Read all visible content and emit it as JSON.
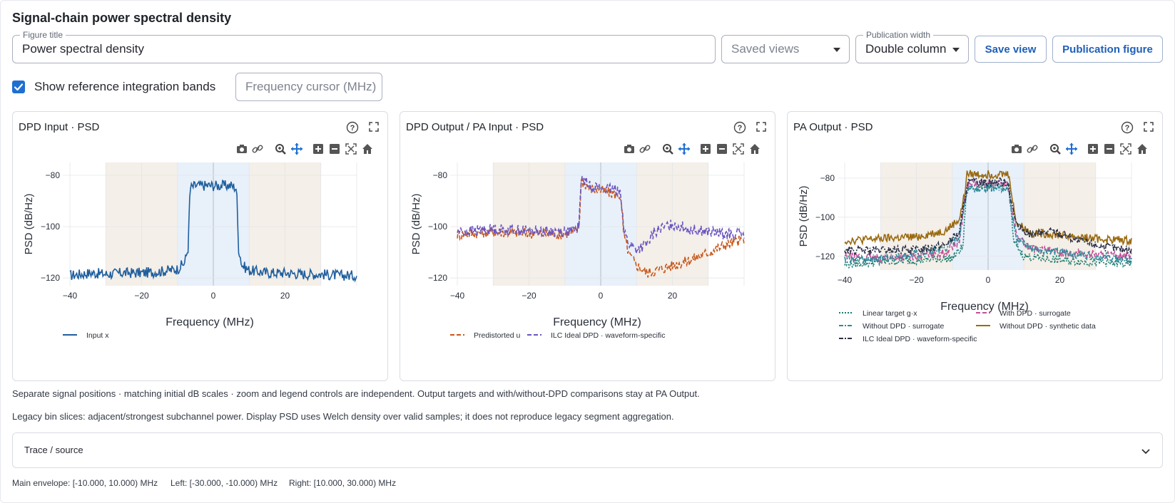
{
  "page": {
    "title": "Signal-chain power spectral density"
  },
  "controls": {
    "figure_title": {
      "label": "Figure title",
      "value": "Power spectral density"
    },
    "saved_views": {
      "placeholder": "Saved views"
    },
    "publication_width": {
      "label": "Publication width",
      "value": "Double column"
    },
    "save_view_label": "Save view",
    "publication_figure_label": "Publication figure",
    "show_bands": {
      "label": "Show reference integration bands",
      "checked": true
    },
    "frequency_cursor": {
      "placeholder": "Frequency cursor (MHz)"
    }
  },
  "panels": [
    {
      "title": "DPD Input · PSD",
      "legend": [
        "Input x"
      ]
    },
    {
      "title": "DPD Output / PA Input · PSD",
      "legend": [
        "Predistorted u",
        "ILC Ideal DPD · waveform-specific"
      ]
    },
    {
      "title": "PA Output · PSD",
      "legend": [
        "Linear target g·x",
        "With DPD · surrogate",
        "Without DPD · surrogate",
        "Without DPD · synthetic data",
        "ILC Ideal DPD · waveform-specific"
      ]
    }
  ],
  "chart_data": [
    {
      "type": "line",
      "title": "DPD Input · PSD",
      "xlabel": "Frequency (MHz)",
      "ylabel": "PSD (dB/Hz)",
      "xlim": [
        -42,
        40
      ],
      "ylim": [
        -123,
        -75
      ],
      "xticks": [
        -40,
        -20,
        0,
        20
      ],
      "yticks": [
        -80,
        -100,
        -120
      ],
      "bands": [
        {
          "name": "Left",
          "x": [
            -30,
            -10
          ]
        },
        {
          "name": "Main envelope",
          "x": [
            -10,
            10
          ]
        },
        {
          "name": "Right",
          "x": [
            10,
            30
          ]
        }
      ],
      "series": [
        {
          "name": "Input x",
          "color": "#1f5f9e",
          "dash": "solid",
          "points": [
            [
              -40,
              -119
            ],
            [
              -34,
              -118
            ],
            [
              -30,
              -118.5
            ],
            [
              -25,
              -118
            ],
            [
              -20,
              -118
            ],
            [
              -15,
              -117.5
            ],
            [
              -10,
              -116.5
            ],
            [
              -8,
              -114
            ],
            [
              -7,
              -108
            ],
            [
              -6.5,
              -85
            ],
            [
              -5,
              -84
            ],
            [
              0,
              -84
            ],
            [
              5,
              -84
            ],
            [
              6.5,
              -85
            ],
            [
              7,
              -108
            ],
            [
              8,
              -115
            ],
            [
              10,
              -117
            ],
            [
              15,
              -118
            ],
            [
              20,
              -118
            ],
            [
              25,
              -118.5
            ],
            [
              30,
              -118.5
            ],
            [
              35,
              -119
            ],
            [
              40,
              -119
            ]
          ]
        }
      ]
    },
    {
      "type": "line",
      "title": "DPD Output / PA Input · PSD",
      "xlabel": "Frequency (MHz)",
      "ylabel": "PSD (dB/Hz)",
      "xlim": [
        -42,
        40
      ],
      "ylim": [
        -123,
        -75
      ],
      "xticks": [
        -40,
        -20,
        0,
        20
      ],
      "yticks": [
        -80,
        -100,
        -120
      ],
      "bands": [
        {
          "name": "Left",
          "x": [
            -30,
            -10
          ]
        },
        {
          "name": "Main envelope",
          "x": [
            -10,
            10
          ]
        },
        {
          "name": "Right",
          "x": [
            10,
            30
          ]
        }
      ],
      "series": [
        {
          "name": "Predistorted u",
          "color": "#c8561a",
          "dash": "dash",
          "points": [
            [
              -40,
              -103
            ],
            [
              -30,
              -102
            ],
            [
              -20,
              -102.5
            ],
            [
              -12,
              -103
            ],
            [
              -7,
              -102
            ],
            [
              -6,
              -100
            ],
            [
              -5.5,
              -82
            ],
            [
              -3,
              -85
            ],
            [
              0,
              -86
            ],
            [
              3,
              -87
            ],
            [
              5.5,
              -88
            ],
            [
              6.5,
              -104
            ],
            [
              8,
              -111
            ],
            [
              10,
              -115
            ],
            [
              13,
              -118
            ],
            [
              18,
              -116
            ],
            [
              25,
              -113
            ],
            [
              30,
              -110
            ],
            [
              35,
              -107
            ],
            [
              40,
              -105
            ]
          ]
        },
        {
          "name": "ILC Ideal DPD · waveform-specific",
          "color": "#6a55c0",
          "dash": "dash",
          "points": [
            [
              -40,
              -102
            ],
            [
              -30,
              -101
            ],
            [
              -20,
              -101.5
            ],
            [
              -12,
              -102
            ],
            [
              -7,
              -101.5
            ],
            [
              -6,
              -99
            ],
            [
              -5.5,
              -81
            ],
            [
              -3,
              -84
            ],
            [
              0,
              -85
            ],
            [
              3,
              -85.5
            ],
            [
              5.5,
              -85.5
            ],
            [
              6.5,
              -102
            ],
            [
              8,
              -107
            ],
            [
              10,
              -109
            ],
            [
              13,
              -107
            ],
            [
              15,
              -102
            ],
            [
              20,
              -99
            ],
            [
              25,
              -101
            ],
            [
              30,
              -102
            ],
            [
              35,
              -103
            ],
            [
              40,
              -103
            ]
          ]
        }
      ]
    },
    {
      "type": "line",
      "title": "PA Output · PSD",
      "xlabel": "Frequency (MHz)",
      "ylabel": "PSD (dB/Hz)",
      "xlim": [
        -42,
        40
      ],
      "ylim": [
        -127,
        -72
      ],
      "xticks": [
        -40,
        -20,
        0,
        20
      ],
      "yticks": [
        -80,
        -100,
        -120
      ],
      "bands": [
        {
          "name": "Left",
          "x": [
            -30,
            -10
          ]
        },
        {
          "name": "Main envelope",
          "x": [
            -10,
            10
          ]
        },
        {
          "name": "Right",
          "x": [
            10,
            30
          ]
        }
      ],
      "series": [
        {
          "name": "Linear target g·x",
          "color": "#1a7a6e",
          "dash": "dot",
          "points": [
            [
              -40,
              -124
            ],
            [
              -30,
              -123
            ],
            [
              -20,
              -122
            ],
            [
              -10,
              -121
            ],
            [
              -7,
              -115
            ],
            [
              -6,
              -85
            ],
            [
              0,
              -84
            ],
            [
              6,
              -84
            ],
            [
              7,
              -112
            ],
            [
              10,
              -120
            ],
            [
              20,
              -122
            ],
            [
              30,
              -123
            ],
            [
              40,
              -124
            ]
          ]
        },
        {
          "name": "With DPD · surrogate",
          "color": "#c44e96",
          "dash": "dash",
          "points": [
            [
              -40,
              -120
            ],
            [
              -30,
              -121
            ],
            [
              -20,
              -120
            ],
            [
              -12,
              -118
            ],
            [
              -8,
              -112
            ],
            [
              -6.5,
              -90
            ],
            [
              -5.5,
              -83
            ],
            [
              0,
              -83
            ],
            [
              5.5,
              -83
            ],
            [
              6.5,
              -95
            ],
            [
              8,
              -110
            ],
            [
              12,
              -116
            ],
            [
              20,
              -118
            ],
            [
              30,
              -119
            ],
            [
              40,
              -120
            ]
          ]
        },
        {
          "name": "Without DPD · surrogate",
          "color": "#2a8a9a",
          "dash": "dashdot",
          "points": [
            [
              -40,
              -122
            ],
            [
              -30,
              -121
            ],
            [
              -20,
              -119
            ],
            [
              -12,
              -116
            ],
            [
              -8,
              -110
            ],
            [
              -6.5,
              -92
            ],
            [
              -5.5,
              -85
            ],
            [
              0,
              -85
            ],
            [
              5.5,
              -85
            ],
            [
              6.5,
              -96
            ],
            [
              8,
              -111
            ],
            [
              12,
              -116
            ],
            [
              20,
              -118
            ],
            [
              30,
              -120
            ],
            [
              40,
              -122
            ]
          ]
        },
        {
          "name": "Without DPD · synthetic data",
          "color": "#9a6a10",
          "dash": "solid",
          "points": [
            [
              -40,
              -112
            ],
            [
              -30,
              -111
            ],
            [
              -20,
              -110
            ],
            [
              -12,
              -107
            ],
            [
              -8,
              -101
            ],
            [
              -6.5,
              -88
            ],
            [
              -6,
              -78
            ],
            [
              0,
              -78
            ],
            [
              6,
              -78
            ],
            [
              6.5,
              -89
            ],
            [
              8,
              -103
            ],
            [
              12,
              -108
            ],
            [
              20,
              -109
            ],
            [
              30,
              -111
            ],
            [
              40,
              -112
            ]
          ]
        },
        {
          "name": "ILC Ideal DPD · waveform-specific",
          "color": "#2b3045",
          "dash": "dashdot",
          "points": [
            [
              -40,
              -117
            ],
            [
              -30,
              -117
            ],
            [
              -20,
              -116.5
            ],
            [
              -12,
              -114
            ],
            [
              -8,
              -108
            ],
            [
              -6.5,
              -90
            ],
            [
              -5.5,
              -82
            ],
            [
              0,
              -82
            ],
            [
              5.5,
              -82
            ],
            [
              6.5,
              -92
            ],
            [
              8,
              -105
            ],
            [
              12,
              -109
            ],
            [
              18,
              -107
            ],
            [
              25,
              -112
            ],
            [
              32,
              -115
            ],
            [
              40,
              -117
            ]
          ]
        }
      ]
    }
  ],
  "captions": {
    "line1": "Separate signal positions · matching initial dB scales · zoom and legend controls are independent. Output targets and with/without-DPD comparisons stay at PA Output.",
    "line2": "Legacy bin slices: adjacent/strongest subchannel power. Display PSD uses Welch density over valid samples; it does not reproduce legacy segment aggregation."
  },
  "expander": {
    "label": "Trace / source"
  },
  "bands_text": {
    "main": "Main envelope: [-10.000, 10.000) MHz",
    "left": "Left: [-30.000, -10.000) MHz",
    "right": "Right: [10.000, 30.000) MHz"
  },
  "colors": {
    "accent": "#1f6fd0",
    "band_side": "#f4efe8",
    "band_main": "#e8f0fa"
  }
}
